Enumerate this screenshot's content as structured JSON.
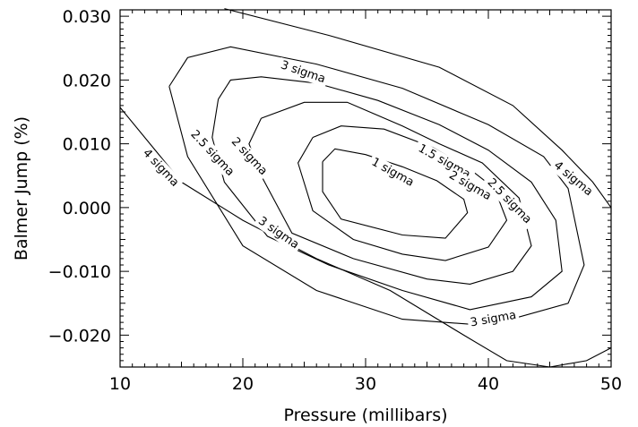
{
  "chart_data": {
    "type": "contour",
    "title": "",
    "xlabel": "Pressure (millibars)",
    "ylabel": "Balmer Jump (%)",
    "xlim": [
      10,
      50
    ],
    "ylim": [
      -0.025,
      0.031
    ],
    "xticks": [
      10,
      20,
      30,
      40,
      50
    ],
    "xtick_labels": [
      "10",
      "20",
      "30",
      "40",
      "50"
    ],
    "yticks": [
      -0.02,
      -0.01,
      0.0,
      0.01,
      0.02,
      0.03
    ],
    "ytick_labels": [
      "−0.020",
      "−0.010",
      "0.000",
      "0.010",
      "0.020",
      "0.030"
    ],
    "grid": false,
    "contours": [
      {
        "label": "1 sigma",
        "label_at": [
          32.2,
          0.0055
        ],
        "label_angle": 29,
        "points": [
          [
            26.5,
            0.0072
          ],
          [
            27.5,
            0.0092
          ],
          [
            30,
            0.0083
          ],
          [
            33,
            0.0064
          ],
          [
            35.8,
            0.0042
          ],
          [
            38,
            0.0013
          ],
          [
            38.3,
            -0.0008
          ],
          [
            36.5,
            -0.0048
          ],
          [
            33,
            -0.0043
          ],
          [
            28,
            -0.0018
          ],
          [
            26.5,
            0.0025
          ],
          [
            26.5,
            0.0072
          ]
        ]
      },
      {
        "label": "1.5 sigma",
        "label_at": [
          36.4,
          0.0072
        ],
        "label_angle": 29,
        "points": [
          [
            25.7,
            0.011
          ],
          [
            28,
            0.0128
          ],
          [
            31.5,
            0.0123
          ],
          [
            35.5,
            0.0094
          ],
          [
            38.5,
            0.006
          ],
          [
            40.5,
            0.003
          ],
          [
            41.5,
            -0.002
          ],
          [
            40,
            -0.0062
          ],
          [
            36.5,
            -0.0083
          ],
          [
            33,
            -0.0073
          ],
          [
            29,
            -0.005
          ],
          [
            25.7,
            -0.0005
          ],
          [
            24.5,
            0.007
          ],
          [
            25.7,
            0.011
          ]
        ]
      },
      {
        "label": "2 sigma",
        "label_at": [
          38.5,
          0.0034
        ],
        "label_angle": 30,
        "points": [
          [
            21.5,
            0.014
          ],
          [
            25,
            0.0165
          ],
          [
            28.5,
            0.0165
          ],
          [
            33,
            0.0128
          ],
          [
            36,
            0.01
          ],
          [
            39.5,
            0.007
          ],
          [
            42.5,
            0.0015
          ],
          [
            43.5,
            -0.006
          ],
          [
            42,
            -0.01
          ],
          [
            38.5,
            -0.012
          ],
          [
            35,
            -0.0112
          ],
          [
            29,
            -0.008
          ],
          [
            24,
            -0.004
          ],
          [
            21.5,
            0.005
          ],
          [
            20.5,
            0.01
          ],
          [
            21.5,
            0.014
          ]
        ]
      },
      {
        "label": "2 sigma",
        "label_at": [
          20.5,
          0.008
        ],
        "label_angle": 47,
        "points": []
      },
      {
        "label": "2.5 sigma",
        "label_at": [
          41.7,
          0.001
        ],
        "label_angle": 46,
        "points": [
          [
            18,
            0.017
          ],
          [
            19,
            0.02
          ],
          [
            21.5,
            0.0205
          ],
          [
            26,
            0.0195
          ],
          [
            31,
            0.0168
          ],
          [
            36,
            0.013
          ],
          [
            40,
            0.009
          ],
          [
            43.5,
            0.004
          ],
          [
            45.5,
            -0.002
          ],
          [
            46,
            -0.01
          ],
          [
            43.5,
            -0.014
          ],
          [
            38.5,
            -0.016
          ],
          [
            33,
            -0.013
          ],
          [
            27,
            -0.009
          ],
          [
            22,
            -0.0045
          ],
          [
            18.5,
            0.004
          ],
          [
            17.5,
            0.011
          ],
          [
            18,
            0.017
          ]
        ]
      },
      {
        "label": "2.5 sigma",
        "label_at": [
          17.5,
          0.0085
        ],
        "label_angle": 47,
        "points": []
      },
      {
        "label": "3 sigma",
        "label_at": [
          24.9,
          0.0212
        ],
        "label_angle": 19,
        "points": [
          [
            14,
            0.019
          ],
          [
            15.5,
            0.0235
          ],
          [
            19,
            0.0252
          ],
          [
            26,
            0.0225
          ],
          [
            33,
            0.0187
          ],
          [
            40,
            0.013
          ],
          [
            44.5,
            0.008
          ],
          [
            46.5,
            0.003
          ],
          [
            47.8,
            -0.009
          ],
          [
            46.5,
            -0.015
          ],
          [
            40,
            -0.0185
          ],
          [
            33,
            -0.0175
          ],
          [
            26,
            -0.013
          ],
          [
            20,
            -0.006
          ],
          [
            15.5,
            0.008
          ],
          [
            14,
            0.019
          ]
        ]
      },
      {
        "label": "3 sigma",
        "label_at": [
          40.4,
          -0.0175
        ],
        "label_angle": -10,
        "points": []
      },
      {
        "label": "3 sigma",
        "label_at": [
          22.9,
          -0.004
        ],
        "label_angle": 35,
        "points": []
      },
      {
        "label": "4 sigma",
        "label_at": [
          46.9,
          0.0045
        ],
        "label_angle": 40,
        "points": [
          [
            18.5,
            0.0312
          ],
          [
            27,
            0.027
          ],
          [
            36,
            0.022
          ],
          [
            42,
            0.016
          ],
          [
            46,
            0.009
          ],
          [
            48.5,
            0.004
          ],
          [
            50,
            0.0
          ],
          [
            50,
            -0.001
          ]
        ]
      },
      {
        "label": "4 sigma",
        "label_at": [
          13.3,
          0.0062
        ],
        "label_angle": 47,
        "points": [
          [
            10,
            0.0157
          ],
          [
            15,
            0.004
          ],
          [
            20,
            -0.002
          ],
          [
            26,
            -0.008
          ],
          [
            32,
            -0.013
          ],
          [
            38,
            -0.02
          ],
          [
            41.5,
            -0.024
          ],
          [
            45,
            -0.025
          ],
          [
            48,
            -0.024
          ],
          [
            50,
            -0.022
          ]
        ]
      }
    ]
  }
}
